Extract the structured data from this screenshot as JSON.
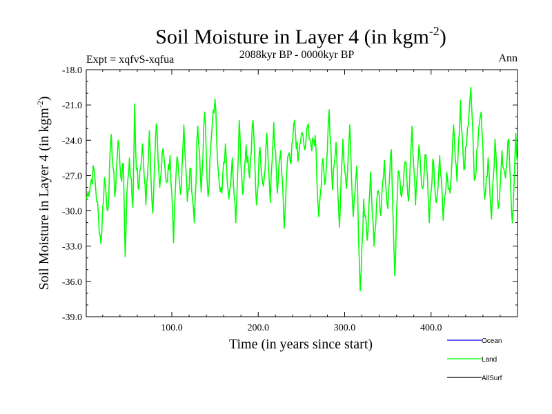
{
  "chart_data": {
    "type": "line",
    "title": "Soil Moisture in Layer 4 (in kgm",
    "title_superscript": "-2",
    "title_suffix": ")",
    "subtitle_left": "Expt = xqfvS-xqfua",
    "subtitle_center": "2088kyr BP - 0000kyr BP",
    "subtitle_right": "Ann",
    "xlabel": "Time (in years since start)",
    "ylabel": "Soil Moisture in Layer 4 (in kgm",
    "ylabel_superscript": "-2",
    "ylabel_suffix": ")",
    "xlim": [
      1,
      500
    ],
    "ylim": [
      -39.0,
      -18.0
    ],
    "x_ticks": [
      100,
      200,
      300,
      400
    ],
    "x_tick_labels": [
      "100.0",
      "200.0",
      "300.0",
      "400.0"
    ],
    "y_ticks": [
      -18,
      -21,
      -24,
      -27,
      -30,
      -33,
      -36,
      -39
    ],
    "y_tick_labels": [
      "-18.0",
      "-21.0",
      "-24.0",
      "-27.0",
      "-30.0",
      "-33.0",
      "-36.0",
      "-39.0"
    ],
    "legend_position": "bottom-right",
    "legend": [
      {
        "name": "Ocean",
        "color": "#0000ff"
      },
      {
        "name": "Land",
        "color": "#00ff00"
      },
      {
        "name": "AllSurf",
        "color": "#000000"
      }
    ],
    "series": [
      {
        "name": "Land",
        "color": "#00ff00",
        "x": [
          1,
          10,
          18,
          22,
          26,
          30,
          34,
          38,
          42,
          44,
          46,
          48,
          51,
          55,
          57,
          59,
          62,
          66,
          70,
          74,
          78,
          82,
          86,
          90,
          94,
          98,
          102,
          106,
          110,
          114,
          118,
          122,
          126,
          130,
          134,
          138,
          142,
          146,
          150,
          154,
          158,
          162,
          166,
          170,
          174,
          178,
          182,
          186,
          190,
          194,
          198,
          202,
          206,
          210,
          214,
          218,
          222,
          226,
          230,
          234,
          238,
          242,
          246,
          250,
          254,
          258,
          262,
          266,
          270,
          274,
          278,
          282,
          286,
          290,
          294,
          298,
          302,
          306,
          310,
          314,
          318,
          322,
          326,
          330,
          334,
          338,
          342,
          346,
          350,
          354,
          358,
          362,
          366,
          370,
          374,
          378,
          382,
          386,
          390,
          394,
          398,
          402,
          406,
          410,
          414,
          418,
          422,
          426,
          430,
          434,
          438,
          442,
          446,
          450,
          454,
          458,
          462,
          466,
          470,
          474,
          478,
          482,
          486,
          490,
          494,
          498,
          500
        ],
        "values": [
          -29.0,
          -26.5,
          -32.8,
          -27.2,
          -30.0,
          -23.5,
          -28.8,
          -24.0,
          -27.5,
          -26.0,
          -33.9,
          -28.5,
          -25.5,
          -29.7,
          -20.9,
          -26.5,
          -28.2,
          -24.3,
          -29.5,
          -23.2,
          -30.2,
          -22.6,
          -28.0,
          -24.7,
          -27.6,
          -25.3,
          -32.7,
          -25.4,
          -28.6,
          -22.7,
          -29.2,
          -26.4,
          -31.0,
          -22.8,
          -28.4,
          -21.6,
          -28.8,
          -23.5,
          -20.5,
          -26.7,
          -28.5,
          -24.3,
          -29.0,
          -25.5,
          -31.0,
          -22.3,
          -28.6,
          -24.4,
          -27.2,
          -22.3,
          -29.5,
          -24.6,
          -27.9,
          -23.4,
          -29.3,
          -22.5,
          -28.5,
          -24.9,
          -31.5,
          -25.5,
          -26.0,
          -22.3,
          -25.8,
          -23.4,
          -24.8,
          -22.6,
          -24.9,
          -23.6,
          -30.5,
          -25.9,
          -27.4,
          -21.4,
          -28.2,
          -24.2,
          -31.4,
          -23.9,
          -28.1,
          -22.7,
          -30.5,
          -26.2,
          -36.8,
          -29.0,
          -32.5,
          -26.7,
          -33.0,
          -28.4,
          -30.4,
          -25.7,
          -29.8,
          -24.8,
          -35.5,
          -26.6,
          -28.8,
          -25.8,
          -29.2,
          -22.8,
          -29.5,
          -24.4,
          -28.1,
          -25.2,
          -31.0,
          -25.6,
          -29.3,
          -25.3,
          -30.8,
          -26.7,
          -28.5,
          -22.7,
          -27.5,
          -20.6,
          -26.5,
          -23.0,
          -19.5,
          -27.4,
          -24.6,
          -21.6,
          -29.0,
          -25.5,
          -30.7,
          -23.9,
          -29.8,
          -24.9,
          -27.2,
          -23.9,
          -31.0,
          -23.4,
          -25.9
        ]
      }
    ]
  }
}
